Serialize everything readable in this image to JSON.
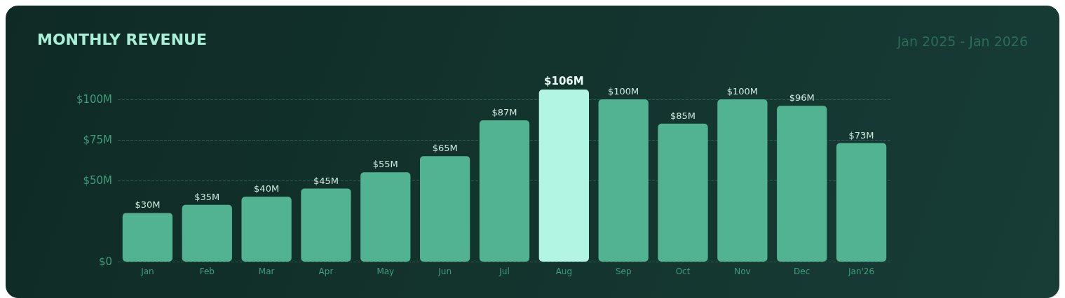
{
  "chart_data": {
    "type": "bar",
    "title": "MONTHLY REVENUE",
    "subtitle": "Jan 2025 - Jan 2026",
    "categories": [
      "Jan",
      "Feb",
      "Mar",
      "Apr",
      "May",
      "Jun",
      "Jul",
      "Aug",
      "Sep",
      "Oct",
      "Nov",
      "Dec",
      "Jan'26"
    ],
    "values": [
      30,
      35,
      40,
      45,
      55,
      65,
      87,
      106,
      100,
      85,
      100,
      96,
      73
    ],
    "colors": [
      "#52b393",
      "#52b393",
      "#52b393",
      "#52b393",
      "#52b393",
      "#52b393",
      "#52b393",
      "#b3f5e3",
      "#52b393",
      "#52b393",
      "#52b393",
      "#52b393",
      "#52b393"
    ],
    "value_labels": [
      "$30M",
      "$35M",
      "$40M",
      "$45M",
      "$55M",
      "$65M",
      "$87M",
      "$106M",
      "$100M",
      "$85M",
      "$100M",
      "$96M",
      "$73M"
    ],
    "yticks": [
      {
        "value": 0,
        "label": "$0"
      },
      {
        "value": 50,
        "label": "$50M"
      },
      {
        "value": 75,
        "label": "$75M"
      },
      {
        "value": 100,
        "label": "$100M"
      }
    ],
    "ylim": [
      0,
      106
    ],
    "grid": "y"
  }
}
